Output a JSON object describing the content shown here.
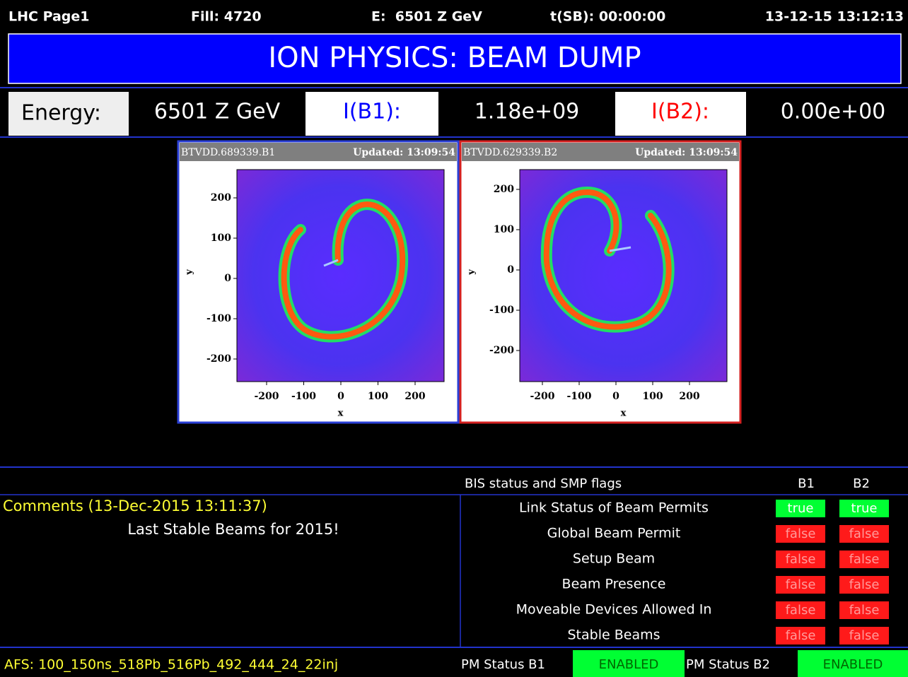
{
  "header": {
    "page": "LHC Page1",
    "fill": "Fill: 4720",
    "energy": "E:  6501 Z GeV",
    "tsb": "t(SB): 00:00:00",
    "datetime": "13-12-15 13:12:13"
  },
  "banner": "ION PHYSICS: BEAM DUMP",
  "summary": {
    "energy_label": "Energy:",
    "energy_value": "6501 Z GeV",
    "ib1_label": "I(B1):",
    "ib1_value": "1.18e+09",
    "ib2_label": "I(B2):",
    "ib2_value": "0.00e+00"
  },
  "screens": [
    {
      "name": "BTVDD.689339.B1",
      "updated": "Updated: 13:09:54",
      "xlabel": "x",
      "ylabel": "y",
      "xticks": [
        -200,
        -100,
        0,
        100,
        200
      ],
      "yticks": [
        200,
        100,
        0,
        -100,
        -200
      ]
    },
    {
      "name": "BTVDD.629339.B2",
      "updated": "Updated: 13:09:54",
      "xlabel": "x",
      "ylabel": "y",
      "xticks": [
        -200,
        -100,
        0,
        100,
        200
      ],
      "yticks": [
        200,
        100,
        0,
        -100,
        -200
      ]
    }
  ],
  "bis": {
    "title": "BIS status and SMP flags",
    "columns": [
      "B1",
      "B2"
    ],
    "rows": [
      {
        "label": "Link Status of Beam Permits",
        "b1": "true",
        "b2": "true"
      },
      {
        "label": "Global Beam Permit",
        "b1": "false",
        "b2": "false"
      },
      {
        "label": "Setup Beam",
        "b1": "false",
        "b2": "false"
      },
      {
        "label": "Beam Presence",
        "b1": "false",
        "b2": "false"
      },
      {
        "label": "Moveable Devices Allowed In",
        "b1": "false",
        "b2": "false"
      },
      {
        "label": "Stable Beams",
        "b1": "false",
        "b2": "false"
      }
    ]
  },
  "comments": {
    "title": "Comments (13-Dec-2015 13:11:37)",
    "text": "Last Stable Beams for 2015!"
  },
  "footer": {
    "afs": "AFS: 100_150ns_518Pb_516Pb_492_444_24_22inj",
    "pm_b1_label": "PM Status B1",
    "pm_b1": "ENABLED",
    "pm_b2_label": "PM Status B2",
    "pm_b2": "ENABLED"
  }
}
